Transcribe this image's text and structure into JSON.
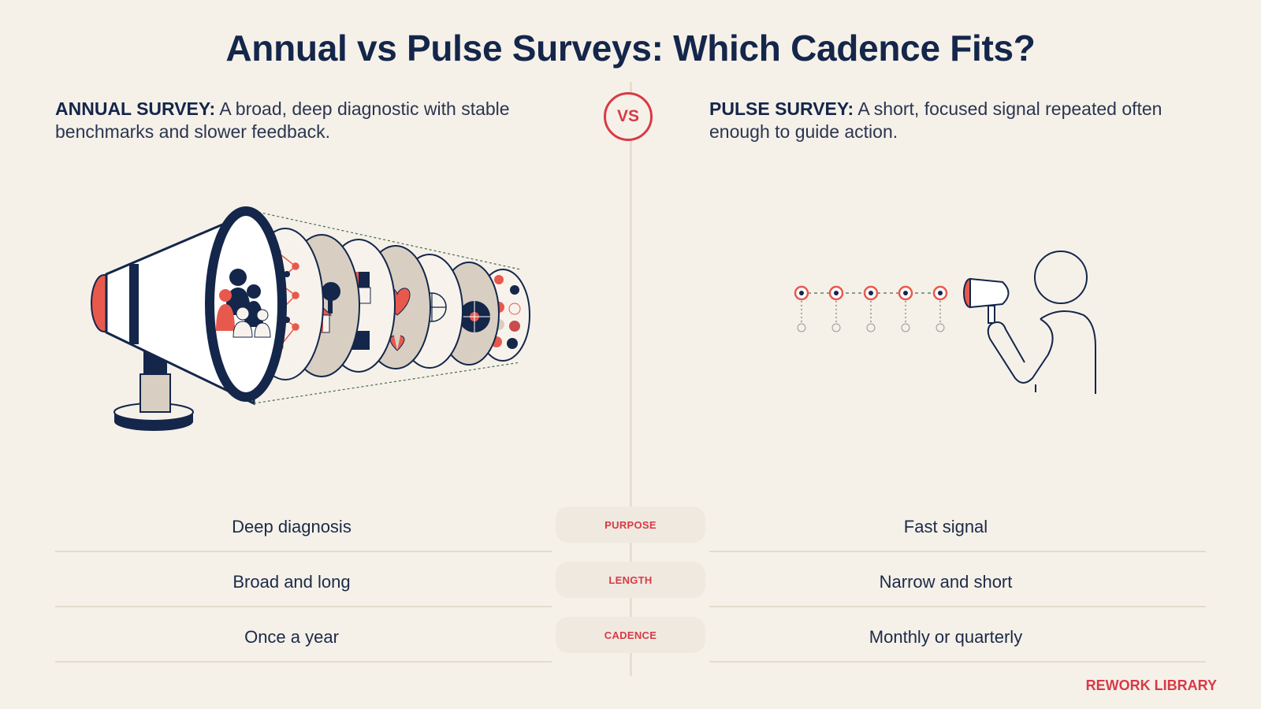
{
  "title": "Annual vs Pulse Surveys: Which Cadence Fits?",
  "vs_label": "VS",
  "annual": {
    "lead": "ANNUAL SURVEY:",
    "text": " A broad, deep diagnostic with stable benchmarks and slower feedback."
  },
  "pulse": {
    "lead": "PULSE SURVEY:",
    "text": " A short, focused signal repeated often enough to guide action."
  },
  "comparison": {
    "rows": [
      {
        "label": "PURPOSE",
        "annual": "Deep diagnosis",
        "pulse": "Fast signal"
      },
      {
        "label": "LENGTH",
        "annual": "Broad and long",
        "pulse": "Narrow and short"
      },
      {
        "label": "CADENCE",
        "annual": "Once a year",
        "pulse": "Monthly or quarterly"
      }
    ]
  },
  "footer": "REWORK LIBRARY",
  "colors": {
    "navy": "#14264a",
    "accent_red": "#d93a45",
    "coral": "#e8594d",
    "background": "#f5f1e9"
  },
  "icons": {
    "annual": "large-megaphone-with-survey-discs-icon",
    "pulse": "person-with-small-megaphone-icon"
  }
}
